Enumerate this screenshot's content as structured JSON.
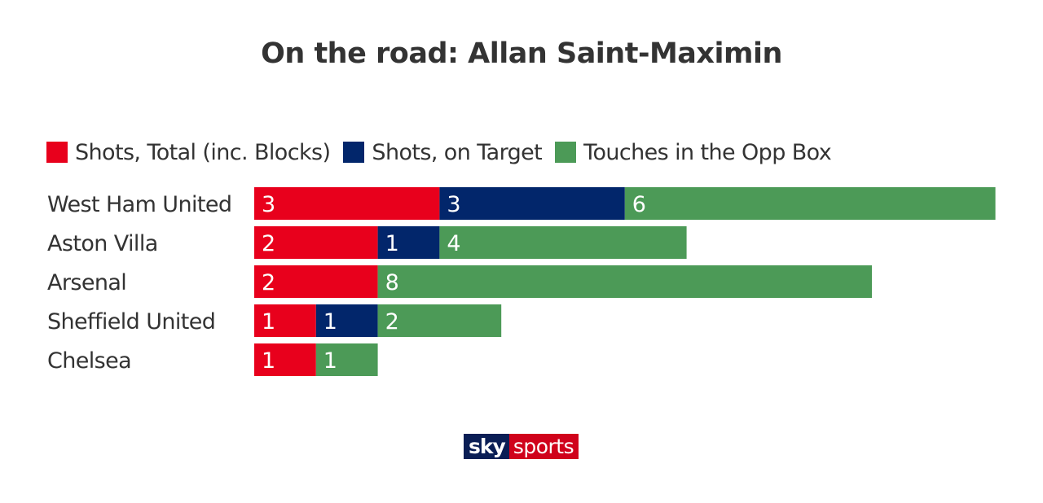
{
  "chart_data": {
    "type": "bar",
    "orientation": "horizontal",
    "stacked": true,
    "title": "On the road: Allan Saint-Maximin",
    "categories": [
      "West Ham United",
      "Aston Villa",
      "Arsenal",
      "Sheffield United",
      "Chelsea"
    ],
    "series": [
      {
        "name": "Shots, Total (inc. Blocks)",
        "color": "#e8001c",
        "values": [
          3,
          2,
          2,
          1,
          1
        ]
      },
      {
        "name": "Shots, on Target",
        "color": "#02266b",
        "values": [
          3,
          1,
          0,
          1,
          0
        ]
      },
      {
        "name": "Touches in the Opp Box",
        "color": "#4c9a57",
        "values": [
          6,
          4,
          8,
          2,
          1
        ]
      }
    ],
    "legend_position": "top-left",
    "grid": false,
    "data_labels": true
  },
  "logo": {
    "sky": "sky",
    "sports": "sports"
  }
}
